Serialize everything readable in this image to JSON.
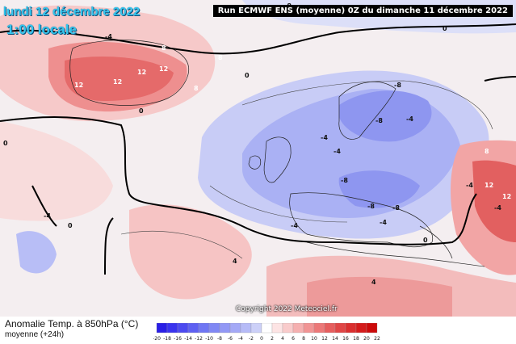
{
  "header": {
    "date": "lundi 12 décembre 2022",
    "time": "1:00 locale",
    "run": "Run ECMWF ENS (moyenne) 0Z du dimanche 11 décembre 2022"
  },
  "copyright": "Copyright 2022 Meteociel.fr",
  "legend": {
    "title": "Anomalie Temp. à 850hPa (°C)",
    "subtitle": "moyenne  (+24h)",
    "ticks": [
      "-20",
      "-18",
      "-16",
      "-14",
      "-12",
      "-10",
      "-8",
      "-6",
      "-4",
      "-2",
      "0",
      "2",
      "4",
      "6",
      "8",
      "10",
      "12",
      "14",
      "16",
      "18",
      "20",
      "22"
    ],
    "colors": [
      "#2a1fe6",
      "#3a34ee",
      "#4c4af0",
      "#5e60f2",
      "#6f76f3",
      "#8088f4",
      "#9298f5",
      "#a4a9f6",
      "#b6bbf7",
      "#ccd0f8",
      "#ffffff",
      "#fde4e4",
      "#f9cbcb",
      "#f5b0b0",
      "#f19494",
      "#ec7878",
      "#e65e5e",
      "#e04646",
      "#da2f2f",
      "#d41b1b",
      "#cc0a0a"
    ]
  },
  "contour_labels": [
    "-8",
    "0",
    "0",
    "12",
    "12",
    "12",
    "8",
    "8",
    "8",
    "12",
    "0",
    "-8",
    "-8",
    "-4",
    "-4",
    "-4",
    "-8",
    "-4",
    "-4",
    "-8",
    "-8",
    "-4",
    "8",
    "12",
    "12",
    "-4",
    "4",
    "4",
    "-4",
    "0",
    "-4",
    "0",
    "0"
  ]
}
